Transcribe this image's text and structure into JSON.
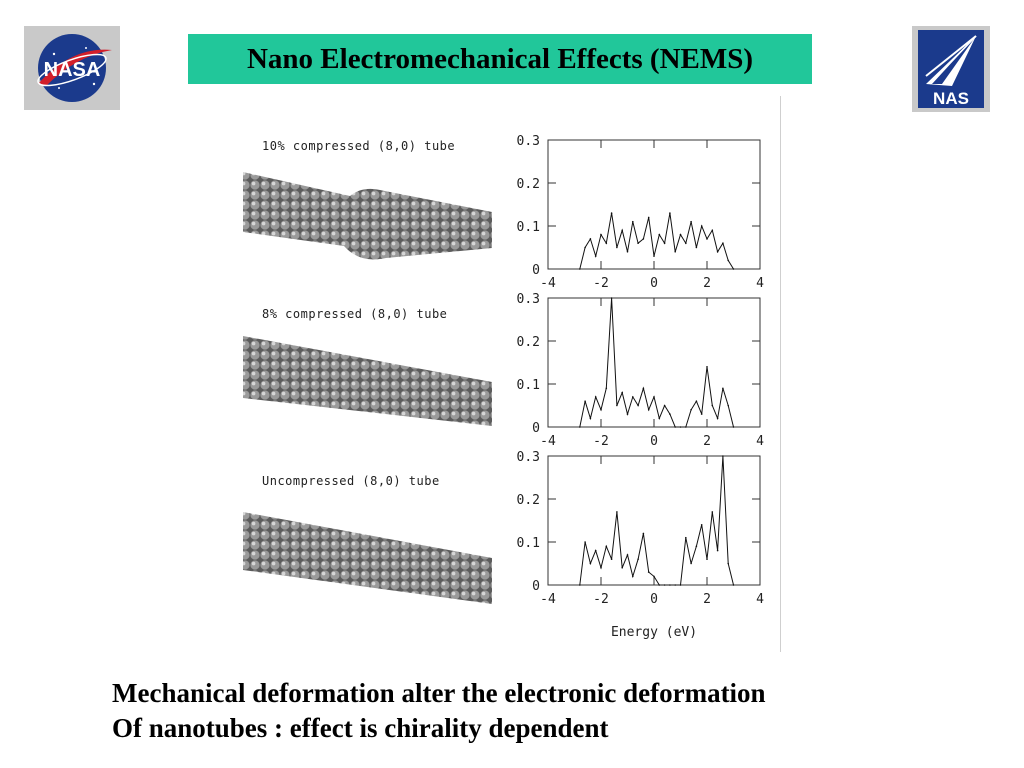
{
  "header": {
    "title": "Nano Electromechanical Effects  (NEMS)",
    "left_logo": {
      "text": "NASA",
      "icon": "nasa-meatball-logo"
    },
    "right_logo": {
      "text": "NAS",
      "icon": "nas-arrow-logo"
    },
    "accent_color": "#21c79a"
  },
  "caption": {
    "line1": "Mechanical deformation alter the electronic deformation",
    "line2": "Of nanotubes : effect is chirality dependent"
  },
  "chart_data": [
    {
      "type": "line",
      "panel_label": "10% compressed (8,0) tube",
      "x": [
        -2.8,
        -2.6,
        -2.4,
        -2.2,
        -2.0,
        -1.8,
        -1.6,
        -1.4,
        -1.2,
        -1.0,
        -0.8,
        -0.6,
        -0.4,
        -0.2,
        0.0,
        0.2,
        0.4,
        0.6,
        0.8,
        1.0,
        1.2,
        1.4,
        1.6,
        1.8,
        2.0,
        2.2,
        2.4,
        2.6,
        2.8,
        3.0
      ],
      "values": [
        0.0,
        0.05,
        0.07,
        0.03,
        0.08,
        0.06,
        0.13,
        0.05,
        0.09,
        0.04,
        0.11,
        0.06,
        0.07,
        0.12,
        0.03,
        0.08,
        0.06,
        0.13,
        0.04,
        0.08,
        0.06,
        0.11,
        0.05,
        0.1,
        0.07,
        0.09,
        0.04,
        0.06,
        0.02,
        0.0
      ],
      "xlim": [
        -4,
        4
      ],
      "ylim": [
        0,
        0.3
      ],
      "xticks": [
        "-4",
        "-2",
        "0",
        "2",
        "4"
      ],
      "yticks": [
        "0",
        "0.1",
        "0.2",
        "0.3"
      ]
    },
    {
      "type": "line",
      "panel_label": "8% compressed (8,0) tube",
      "x": [
        -2.8,
        -2.6,
        -2.4,
        -2.2,
        -2.0,
        -1.8,
        -1.6,
        -1.4,
        -1.2,
        -1.0,
        -0.8,
        -0.6,
        -0.4,
        -0.2,
        0.0,
        0.2,
        0.4,
        0.6,
        0.8,
        1.0,
        1.2,
        1.4,
        1.6,
        1.8,
        2.0,
        2.2,
        2.4,
        2.6,
        2.8,
        3.0
      ],
      "values": [
        0.0,
        0.06,
        0.02,
        0.07,
        0.04,
        0.09,
        0.3,
        0.05,
        0.08,
        0.03,
        0.07,
        0.05,
        0.09,
        0.04,
        0.07,
        0.02,
        0.05,
        0.03,
        0.0,
        0.0,
        0.0,
        0.04,
        0.06,
        0.03,
        0.14,
        0.05,
        0.02,
        0.09,
        0.05,
        0.0
      ],
      "xlim": [
        -4,
        4
      ],
      "ylim": [
        0,
        0.3
      ],
      "xticks": [
        "-4",
        "-2",
        "0",
        "2",
        "4"
      ],
      "yticks": [
        "0",
        "0.1",
        "0.2",
        "0.3"
      ]
    },
    {
      "type": "line",
      "panel_label": "Uncompressed (8,0) tube",
      "xlabel": "Energy (eV)",
      "x": [
        -2.8,
        -2.6,
        -2.4,
        -2.2,
        -2.0,
        -1.8,
        -1.6,
        -1.4,
        -1.2,
        -1.0,
        -0.8,
        -0.6,
        -0.4,
        -0.2,
        0.0,
        0.2,
        0.4,
        0.6,
        0.8,
        1.0,
        1.2,
        1.4,
        1.6,
        1.8,
        2.0,
        2.2,
        2.4,
        2.6,
        2.8,
        3.0
      ],
      "values": [
        0.0,
        0.1,
        0.05,
        0.08,
        0.04,
        0.09,
        0.06,
        0.17,
        0.04,
        0.07,
        0.02,
        0.06,
        0.12,
        0.03,
        0.02,
        0.0,
        0.0,
        0.0,
        0.0,
        0.0,
        0.11,
        0.05,
        0.09,
        0.14,
        0.06,
        0.17,
        0.08,
        0.3,
        0.05,
        0.0
      ],
      "xlim": [
        -4,
        4
      ],
      "ylim": [
        0,
        0.3
      ],
      "xticks": [
        "-4",
        "-2",
        "0",
        "2",
        "4"
      ],
      "yticks": [
        "0",
        "0.1",
        "0.2",
        "0.3"
      ]
    }
  ]
}
